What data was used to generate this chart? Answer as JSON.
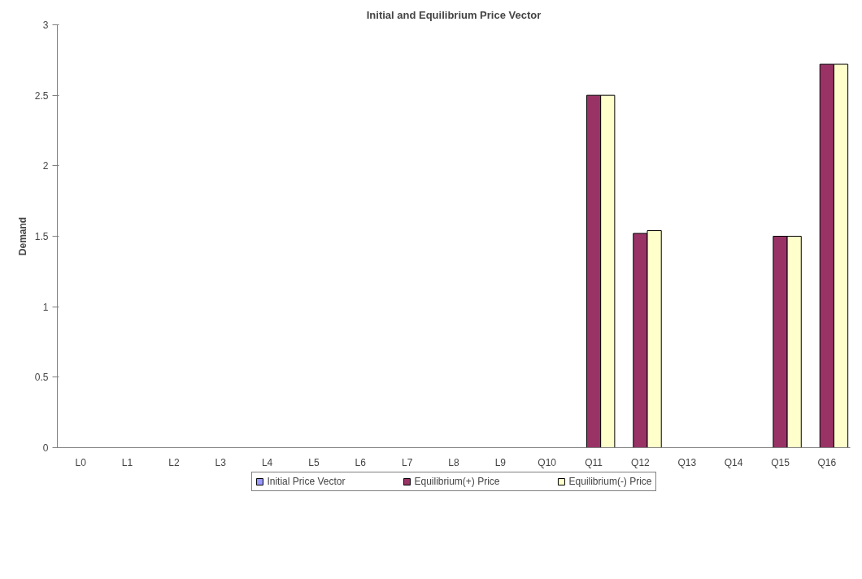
{
  "chart_data": {
    "type": "bar",
    "title": "Initial and Equilibrium Price Vector",
    "ylabel": "Demand",
    "categories": [
      "L0",
      "L1",
      "L2",
      "L3",
      "L4",
      "L5",
      "L6",
      "L7",
      "L8",
      "L9",
      "Q10",
      "Q11",
      "Q12",
      "Q13",
      "Q14",
      "Q15",
      "Q16"
    ],
    "series": [
      {
        "name": "Initial Price Vector",
        "color": "#9999ff",
        "values": [
          0,
          0,
          0,
          0,
          0,
          0,
          0,
          0,
          0,
          0,
          0,
          0,
          0,
          0,
          0,
          0,
          0
        ]
      },
      {
        "name": "Equilibrium(+) Price",
        "color": "#993366",
        "values": [
          0,
          0,
          0,
          0,
          0,
          0,
          0,
          0,
          0,
          0,
          0,
          2.5,
          1.52,
          0,
          0,
          1.5,
          2.72
        ]
      },
      {
        "name": "Equilibrium(-) Price",
        "color": "#ffffcc",
        "values": [
          0,
          0,
          0,
          0,
          0,
          0,
          0,
          0,
          0,
          0,
          0,
          2.5,
          1.54,
          0,
          0,
          1.5,
          2.72
        ]
      }
    ],
    "ylim": [
      0,
      3
    ],
    "yticks": [
      0,
      0.5,
      1,
      1.5,
      2,
      2.5,
      3
    ],
    "grid": false,
    "legend": "bottom"
  }
}
